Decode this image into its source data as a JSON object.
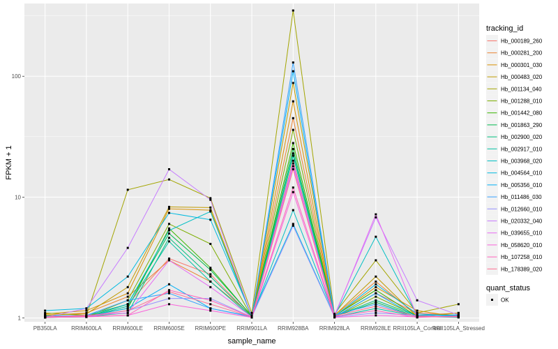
{
  "chart_data": {
    "type": "line",
    "xlabel": "sample_name",
    "ylabel": "FPKM + 1",
    "y_scale": "log10",
    "ylim": [
      0.93,
      400
    ],
    "y_ticks": [
      {
        "value": 1,
        "label": "1"
      },
      {
        "value": 10,
        "label": "10"
      },
      {
        "value": 100,
        "label": "100"
      }
    ],
    "categories": [
      "PB350LA",
      "RRIM600LA",
      "RRIM600LE",
      "RRIM600SE",
      "RRIM600PE",
      "RRIM901LA",
      "RRIM928BA",
      "RRIM928LA",
      "RRIM928LE",
      "RRII105LA_Control",
      "RRII105LA_Stressed"
    ],
    "grid": true,
    "background": "#EBEBEB",
    "grid_color": "#FFFFFF",
    "legend": {
      "title": "tracking_id",
      "position": "right",
      "status_title": "quant_status",
      "status_items": [
        "OK"
      ]
    },
    "series": [
      {
        "name": "Hb_000189_260",
        "color": "#F8766D",
        "values": [
          1.02,
          1.05,
          1.3,
          3.1,
          2.3,
          1.02,
          20,
          1.02,
          1.6,
          1.1,
          1.05
        ]
      },
      {
        "name": "Hb_000281_200",
        "color": "#EA8331",
        "values": [
          1.05,
          1.1,
          1.5,
          3.0,
          2.0,
          1.05,
          45,
          1.05,
          2.0,
          1.05,
          1.1
        ]
      },
      {
        "name": "Hb_000301_030",
        "color": "#D89000",
        "values": [
          1.08,
          1.15,
          1.6,
          8.0,
          7.8,
          1.02,
          62,
          1.03,
          1.8,
          1.15,
          1.02
        ]
      },
      {
        "name": "Hb_000483_020",
        "color": "#C09B00",
        "values": [
          1.06,
          1.08,
          1.8,
          8.3,
          8.2,
          1.03,
          88,
          1.05,
          2.2,
          1.02,
          1.1
        ]
      },
      {
        "name": "Hb_001134_040",
        "color": "#A3A500",
        "values": [
          1.1,
          1.05,
          11.5,
          14.0,
          9.8,
          1.1,
          350,
          1.08,
          3.0,
          1.1,
          1.3
        ]
      },
      {
        "name": "Hb_001288_010",
        "color": "#7CAE00",
        "values": [
          1.02,
          1.02,
          1.4,
          6.0,
          4.1,
          1.02,
          36,
          1.02,
          1.5,
          1.04,
          1.02
        ]
      },
      {
        "name": "Hb_001442_080",
        "color": "#39B600",
        "values": [
          1.03,
          1.04,
          1.2,
          5.5,
          2.6,
          1.03,
          28,
          1.04,
          1.7,
          1.03,
          1.04
        ]
      },
      {
        "name": "Hb_001863_290",
        "color": "#00BB4E",
        "values": [
          1.01,
          1.02,
          1.3,
          5.0,
          2.5,
          1.04,
          25,
          1.03,
          1.35,
          1.02,
          1.03
        ]
      },
      {
        "name": "Hb_002900_020",
        "color": "#00BF7D",
        "values": [
          1.02,
          1.03,
          1.1,
          4.6,
          2.2,
          1.02,
          23,
          1.03,
          1.4,
          1.04,
          1.02
        ]
      },
      {
        "name": "Hb_002917_010",
        "color": "#00C1A3",
        "values": [
          1.01,
          1.02,
          1.25,
          4.3,
          2.0,
          1.01,
          22,
          1.02,
          1.2,
          1.03,
          1.01
        ]
      },
      {
        "name": "Hb_003968_020",
        "color": "#00BFC4",
        "values": [
          1.04,
          1.05,
          1.3,
          5.3,
          7.6,
          1.02,
          7.8,
          1.04,
          4.7,
          1.05,
          1.06
        ]
      },
      {
        "name": "Hb_004564_010",
        "color": "#00BAE0",
        "values": [
          1.15,
          1.2,
          2.2,
          7.4,
          6.5,
          1.05,
          6.0,
          1.03,
          1.9,
          1.08,
          1.04
        ]
      },
      {
        "name": "Hb_005356_010",
        "color": "#00B0F6",
        "values": [
          1.02,
          1.03,
          1.2,
          1.9,
          1.2,
          1.03,
          110,
          1.02,
          1.6,
          1.02,
          1.05
        ]
      },
      {
        "name": "Hb_011486_030",
        "color": "#35A2FF",
        "values": [
          1.03,
          1.05,
          1.4,
          1.6,
          1.2,
          1.02,
          130,
          1.06,
          1.3,
          1.02,
          1.02
        ]
      },
      {
        "name": "Hb_012660_010",
        "color": "#9590FF",
        "values": [
          1.02,
          1.02,
          1.15,
          1.45,
          1.45,
          1.02,
          5.8,
          1.02,
          1.1,
          1.05,
          1.02
        ]
      },
      {
        "name": "Hb_020332_040",
        "color": "#C77CFF",
        "values": [
          1.01,
          1.2,
          3.8,
          17.0,
          9.5,
          1.02,
          19,
          1.05,
          6.8,
          1.4,
          1.06
        ]
      },
      {
        "name": "Hb_039655_010",
        "color": "#E76BF3",
        "values": [
          1.02,
          1.05,
          1.1,
          3.0,
          1.8,
          1.02,
          18,
          1.03,
          7.2,
          1.03,
          1.02
        ]
      },
      {
        "name": "Hb_058620_010",
        "color": "#FA62DB",
        "values": [
          1.01,
          1.02,
          1.05,
          1.3,
          1.15,
          1.01,
          11,
          1.01,
          1.05,
          1.02,
          1.03
        ]
      },
      {
        "name": "Hb_107258_010",
        "color": "#FF62BC",
        "values": [
          1.01,
          1.03,
          1.05,
          1.7,
          1.4,
          1.02,
          12,
          1.03,
          1.15,
          1.01,
          1.04
        ]
      },
      {
        "name": "Hb_178389_020",
        "color": "#FF6C91",
        "values": [
          1.02,
          1.04,
          1.15,
          1.65,
          1.3,
          1.02,
          17,
          1.04,
          1.25,
          1.03,
          1.02
        ]
      }
    ]
  }
}
